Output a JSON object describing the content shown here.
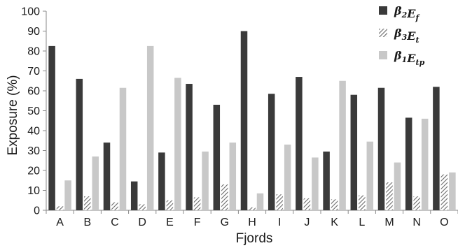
{
  "chart_data": {
    "type": "bar",
    "title": "",
    "xlabel": "Fjords",
    "ylabel": "Exposure (%)",
    "ylim": [
      0,
      100
    ],
    "yticks": [
      0,
      10,
      20,
      30,
      40,
      50,
      60,
      70,
      80,
      90,
      100
    ],
    "grid": false,
    "legend_position": "top-right",
    "categories": [
      "A",
      "B",
      "C",
      "D",
      "E",
      "F",
      "G",
      "H",
      "I",
      "J",
      "K",
      "L",
      "M",
      "N",
      "O"
    ],
    "series": [
      {
        "name": "β2Ef",
        "name_main": "β",
        "name_sub1": "2",
        "name_mid": "E",
        "name_sub2": "f",
        "color": "#3a3a3a",
        "pattern": "solid",
        "values": [
          82.5,
          66,
          34,
          14.5,
          29,
          63.5,
          53,
          90,
          58.5,
          67,
          29.5,
          58,
          61.5,
          46.5,
          62
        ]
      },
      {
        "name": "β3Et",
        "name_main": "β",
        "name_sub1": "3",
        "name_mid": "E",
        "name_sub2": "t",
        "color": "#7a7a7a",
        "pattern": "hatch",
        "values": [
          2,
          7,
          4,
          3,
          5,
          6.5,
          13,
          1.5,
          8,
          6,
          5.5,
          7.5,
          14,
          7,
          18
        ]
      },
      {
        "name": "β1Etp",
        "name_main": "β",
        "name_sub1": "1",
        "name_mid": "E",
        "name_sub2": "tp",
        "color": "#c8c8c8",
        "pattern": "solid",
        "values": [
          15,
          27,
          61.5,
          82.5,
          66.5,
          29.5,
          34,
          8.5,
          33,
          26.5,
          65,
          34.5,
          24,
          46,
          19
        ]
      }
    ]
  }
}
